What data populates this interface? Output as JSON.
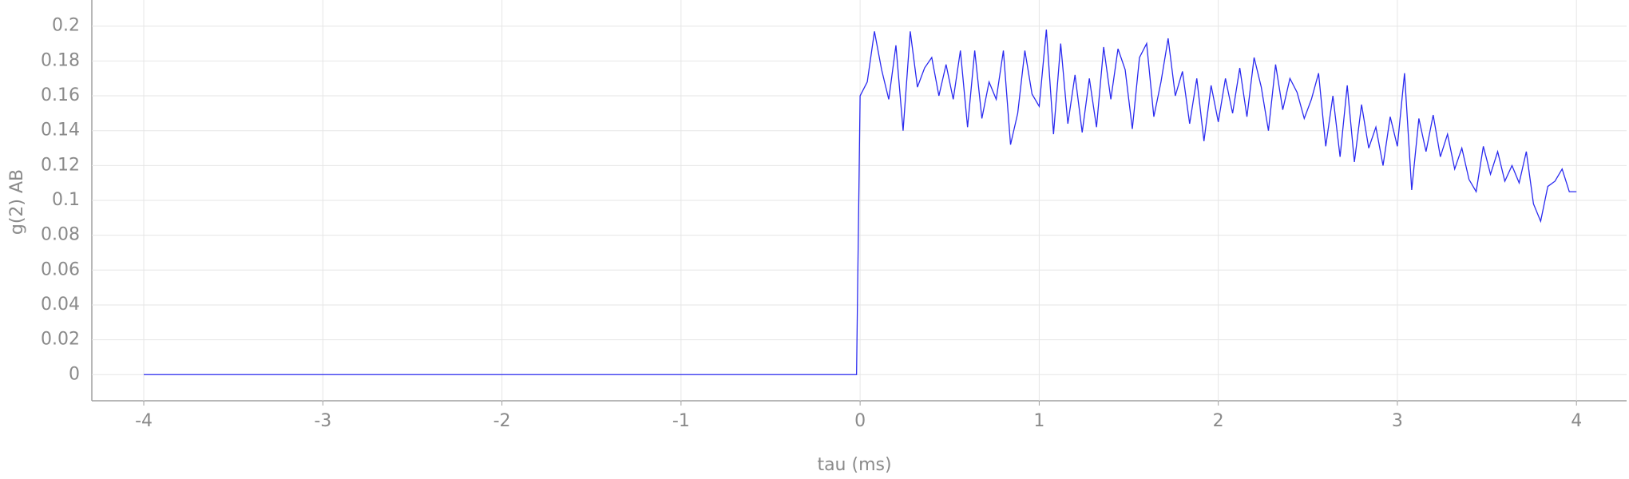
{
  "chart_data": {
    "type": "line",
    "xlabel": "tau (ms)",
    "ylabel": "g(2) AB",
    "color": "#2a2af0",
    "grid": true,
    "xlim": [
      -4.29,
      4.28
    ],
    "ylim": [
      -0.015,
      0.215
    ],
    "xticks": [
      -4,
      -3,
      -2,
      -1,
      0,
      1,
      2,
      3,
      4
    ],
    "yticks": [
      0,
      0.02,
      0.04,
      0.06,
      0.08,
      0.1,
      0.12,
      0.14,
      0.16,
      0.18,
      0.2
    ],
    "x": [
      -4,
      -0.02,
      0,
      0.04,
      0.08,
      0.12,
      0.16,
      0.2,
      0.24,
      0.28,
      0.32,
      0.36,
      0.4,
      0.44,
      0.48,
      0.52,
      0.56,
      0.6,
      0.64,
      0.68,
      0.72,
      0.76,
      0.8,
      0.84,
      0.88,
      0.92,
      0.96,
      1,
      1.04,
      1.08,
      1.12,
      1.16,
      1.2,
      1.24,
      1.28,
      1.32,
      1.36,
      1.4,
      1.44,
      1.48,
      1.52,
      1.56,
      1.6,
      1.64,
      1.68,
      1.72,
      1.76,
      1.8,
      1.84,
      1.88,
      1.92,
      1.96,
      2,
      2.04,
      2.08,
      2.12,
      2.16,
      2.2,
      2.24,
      2.28,
      2.32,
      2.36,
      2.4,
      2.44,
      2.48,
      2.52,
      2.56,
      2.6,
      2.64,
      2.68,
      2.72,
      2.76,
      2.8,
      2.84,
      2.88,
      2.92,
      2.96,
      3,
      3.04,
      3.08,
      3.12,
      3.16,
      3.2,
      3.24,
      3.28,
      3.32,
      3.36,
      3.4,
      3.44,
      3.48,
      3.52,
      3.56,
      3.6,
      3.64,
      3.68,
      3.72,
      3.76,
      3.8,
      3.84,
      3.88,
      3.92,
      3.96,
      4
    ],
    "values": [
      0,
      0,
      0.16,
      0.168,
      0.197,
      0.175,
      0.158,
      0.189,
      0.14,
      0.197,
      0.165,
      0.176,
      0.182,
      0.16,
      0.178,
      0.158,
      0.186,
      0.142,
      0.186,
      0.147,
      0.168,
      0.158,
      0.186,
      0.132,
      0.15,
      0.186,
      0.161,
      0.154,
      0.198,
      0.138,
      0.19,
      0.144,
      0.172,
      0.139,
      0.17,
      0.142,
      0.188,
      0.158,
      0.187,
      0.175,
      0.141,
      0.182,
      0.19,
      0.148,
      0.168,
      0.193,
      0.16,
      0.174,
      0.144,
      0.17,
      0.134,
      0.166,
      0.145,
      0.17,
      0.15,
      0.176,
      0.148,
      0.182,
      0.165,
      0.14,
      0.178,
      0.152,
      0.17,
      0.162,
      0.147,
      0.158,
      0.173,
      0.131,
      0.16,
      0.125,
      0.166,
      0.122,
      0.155,
      0.13,
      0.142,
      0.12,
      0.148,
      0.131,
      0.173,
      0.106,
      0.147,
      0.128,
      0.149,
      0.125,
      0.138,
      0.118,
      0.13,
      0.112,
      0.105,
      0.131,
      0.115,
      0.128,
      0.111,
      0.12,
      0.11,
      0.128,
      0.098,
      0.088,
      0.108,
      0.111,
      0.118,
      0.105,
      0.105
    ]
  }
}
